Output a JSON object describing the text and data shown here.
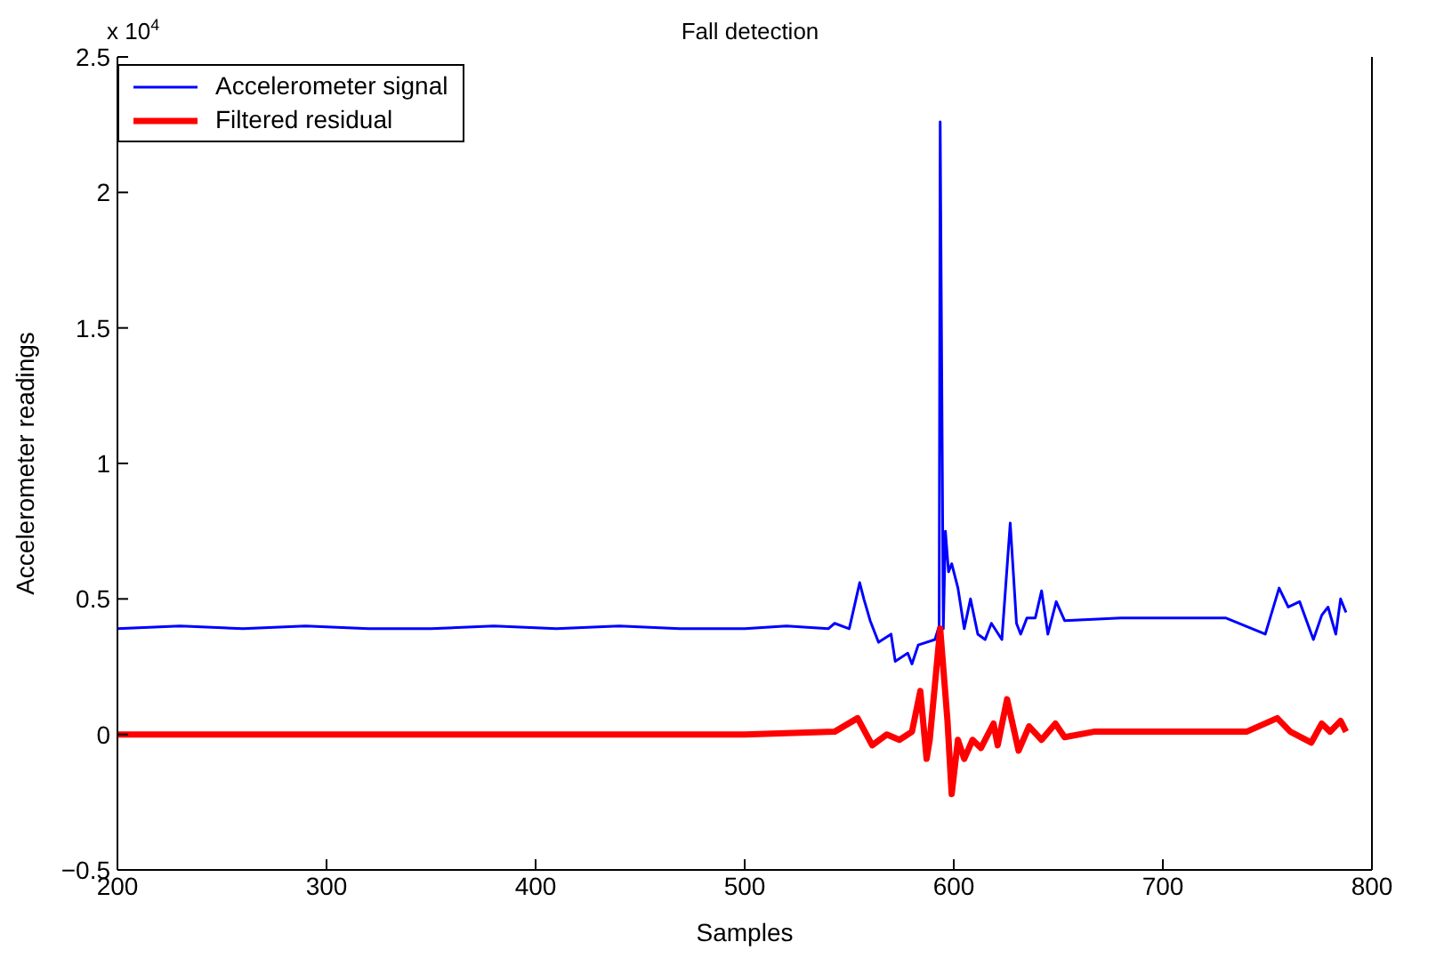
{
  "chart_data": {
    "type": "line",
    "title": "Fall detection",
    "xlabel": "Samples",
    "ylabel": "Accelerometer readings",
    "annotations": [
      "x 10$^{4}$"
    ],
    "xlim": [
      200,
      800
    ],
    "xticks": [
      200,
      300,
      400,
      500,
      600,
      700,
      800
    ],
    "ylim": [
      -0.5,
      2.5
    ],
    "yticks": [
      {
        "value": -0.5,
        "label": "−0.5"
      },
      0,
      0.5,
      1,
      1.5,
      2,
      2.5
    ],
    "legend": "top left",
    "marker": "none",
    "line_style": "solid",
    "series": [
      {
        "name": "Accelerometer signal",
        "color": "#0000ff",
        "x": [
          200,
          230,
          260,
          290,
          320,
          350,
          380,
          410,
          440,
          470,
          500,
          520,
          540,
          543,
          550,
          555,
          557,
          560,
          564,
          570,
          572,
          578,
          580,
          583,
          591,
          593,
          593.5,
          595,
          596,
          597.5,
          599,
          602,
          605,
          608,
          611.5,
          615,
          618,
          623,
          627,
          630,
          632,
          635,
          639,
          642,
          645,
          649,
          653,
          680,
          708,
          730,
          749,
          755.6,
          760,
          765.4,
          772,
          776,
          779,
          782.7,
          785,
          787.6
        ],
        "values": [
          0.39,
          0.4,
          0.39,
          0.4,
          0.39,
          0.39,
          0.4,
          0.39,
          0.4,
          0.39,
          0.39,
          0.4,
          0.39,
          0.41,
          0.39,
          0.56,
          0.5,
          0.42,
          0.34,
          0.37,
          0.27,
          0.3,
          0.26,
          0.33,
          0.35,
          0.4,
          2.26,
          0.39,
          0.75,
          0.6,
          0.63,
          0.54,
          0.39,
          0.5,
          0.37,
          0.35,
          0.41,
          0.35,
          0.78,
          0.41,
          0.37,
          0.43,
          0.43,
          0.53,
          0.37,
          0.49,
          0.42,
          0.43,
          0.43,
          0.43,
          0.37,
          0.54,
          0.47,
          0.49,
          0.35,
          0.44,
          0.47,
          0.37,
          0.5,
          0.45
        ]
      },
      {
        "name": "Filtered residual",
        "color": "#ff0000",
        "x": [
          200,
          250,
          300,
          350,
          400,
          450,
          500,
          543,
          554,
          561,
          568,
          574,
          580,
          584,
          587,
          588.5,
          593.5,
          597,
          599,
          602,
          605,
          609,
          613,
          619,
          621,
          625.5,
          631,
          636,
          642,
          648.6,
          653,
          667,
          700,
          740,
          754.7,
          761,
          771,
          776,
          780,
          785,
          787.6
        ],
        "values": [
          0,
          0,
          0,
          0,
          0,
          0,
          0,
          0.01,
          0.06,
          -0.04,
          0,
          -0.02,
          0.01,
          0.16,
          -0.09,
          -0.02,
          0.39,
          0.05,
          -0.22,
          -0.02,
          -0.09,
          -0.02,
          -0.05,
          0.04,
          -0.04,
          0.13,
          -0.06,
          0.03,
          -0.02,
          0.04,
          -0.01,
          0.01,
          0.01,
          0.01,
          0.06,
          0.01,
          -0.03,
          0.04,
          0.01,
          0.05,
          0.01
        ]
      }
    ]
  }
}
